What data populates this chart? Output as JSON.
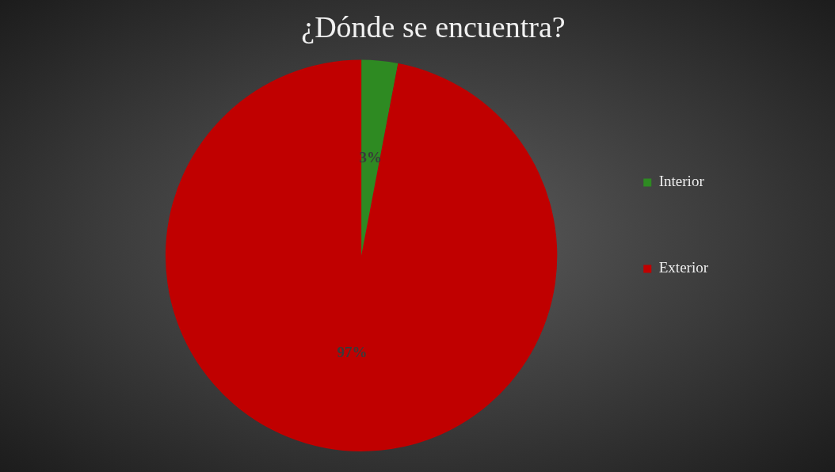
{
  "chart_data": {
    "type": "pie",
    "title": "¿Dónde se encuentra?",
    "categories": [
      "Interior",
      "Exterior"
    ],
    "values": [
      3,
      97
    ],
    "colors": [
      "#2e8a22",
      "#c00000"
    ],
    "value_labels": [
      "3%",
      "97%"
    ],
    "legend": "right"
  }
}
